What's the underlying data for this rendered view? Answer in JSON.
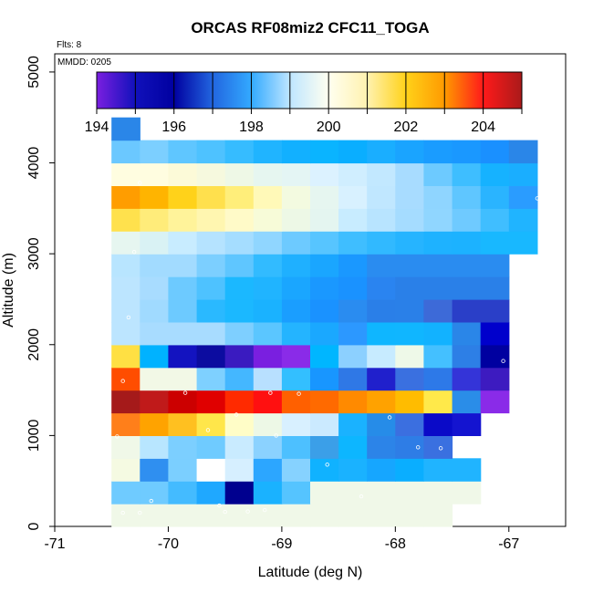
{
  "chart_data": {
    "type": "heatmap",
    "title": "ORCAS RF08miz2 CFC11_TOGA",
    "xlabel": "Latitude (deg N)",
    "ylabel": "Altitude (m)",
    "xlim": [
      -71,
      -66.5
    ],
    "ylim": [
      0,
      5200
    ],
    "x_ticks": [
      -71,
      -70,
      -69,
      -68,
      -67
    ],
    "y_ticks": [
      0,
      1000,
      2000,
      3000,
      4000,
      5000
    ],
    "flights_label": "Flts: 8",
    "date_label": "MMDD: 0205",
    "colorbar": {
      "min": 194,
      "max": 205,
      "tick_values": [
        194,
        196,
        198,
        200,
        202,
        204
      ],
      "colors": [
        "#7a1fe0",
        "#1111bb",
        "#0000a0",
        "#2266e0",
        "#33aaff",
        "#bfe6ff",
        "#fffff0",
        "#fff2b0",
        "#ffd21a",
        "#ff9a00",
        "#ff1a1a",
        "#aa1a1a"
      ]
    },
    "grid": {
      "x_start": -70.5,
      "x_step": 0.25,
      "y_start": 0,
      "y_step": 250,
      "rows": [
        [
          "#f0f8e8",
          "#f0f8e8",
          "#f0f8e8",
          "#f0f8e8",
          "#f0f8e8",
          "#f0f8e8",
          "#f0f8e8",
          "#f0f8e8",
          "#f0f8e8",
          "#f0f8e8",
          "#f0f8e8",
          "#f0f8e8",
          "#f0f8e8",
          "#f0f8e8",
          "#f0f8e8",
          "#f0f8e8"
        ],
        [
          "#6fcbff",
          "#6fcbff",
          "#44bbff",
          "#1fa8ff",
          "#00008f",
          "#1ab2ff",
          "#55c4ff",
          "#f0f8e8",
          "#f0f8e8",
          "#f0f8e8",
          "#f0f8e8",
          "#f0f8e8",
          "#f0f8e8",
          "#f0f8e8",
          "#f0f8e8",
          "#f0f8e8"
        ],
        [
          "#f5fae2",
          "#2f8ff0",
          "#7bcfff",
          "#ffffff",
          "#d6efff",
          "#2ca6ff",
          "#86d2ff",
          "#10b2ff",
          "#1ab2ff",
          "#16a6ff",
          "#0aaeff",
          "#20b4ff",
          "#20b4ff",
          "#0fb6ff",
          "#0fb6ff",
          "#0fb6ff"
        ],
        [
          "#f0f8e8",
          "#b8e6ff",
          "#7ccfff",
          "#6fcbff",
          "#c9ebff",
          "#8bd2ff",
          "#4dc0ff",
          "#3b9fe8",
          "#0db6ff",
          "#2c84e8",
          "#2e7de6",
          "#3a70e0",
          "#1313c8",
          "#1313c8",
          "#1313c8",
          "#1313c8"
        ],
        [
          "#ff7f1a",
          "#ffa300",
          "#ffc020",
          "#ffe64a",
          "#fffdc7",
          "#edf8e6",
          "#d8f0ff",
          "#cbeaff",
          "#1ab2ff",
          "#268ce8",
          "#3b6fe0",
          "#0a0ac8",
          "#1414d0",
          "#1414d0",
          "#1414d0",
          "#1414d0"
        ],
        [
          "#a51a1a",
          "#c01a1a",
          "#cc0000",
          "#e00000",
          "#ff2a00",
          "#ff1010",
          "#ff6000",
          "#ff6a00",
          "#ff8a00",
          "#ffa200",
          "#ffbc00",
          "#ffe94a",
          "#2a8de8",
          "#8a2be8",
          "#8a2be8",
          "#8a2be8"
        ],
        [
          "#ff4d00",
          "#f2f8e6",
          "#f2f8e6",
          "#7ed0ff",
          "#44b7ff",
          "#b8e0ff",
          "#33bfff",
          "#1896ff",
          "#2f78e6",
          "#2020cc",
          "#3a70e0",
          "#2d79e8",
          "#3434d8",
          "#3d1bc0",
          "#3d1bc0",
          "#3d1bc0"
        ],
        [
          "#ffe043",
          "#00b2ff",
          "#1313c0",
          "#0c0ca0",
          "#3a1bc0",
          "#7a1fe0",
          "#8a2be8",
          "#00b6ff",
          "#8cd0ff",
          "#c7ebff",
          "#eef9e8",
          "#44c0ff",
          "#2d7fe6",
          "#0000a0",
          "#0000a0",
          "#0000a0"
        ],
        [
          "#bce5ff",
          "#a8dcff",
          "#a8dcff",
          "#a8dcff",
          "#7ecfff",
          "#5bc6ff",
          "#24b4ff",
          "#1aa8ff",
          "#2c98ff",
          "#0fb6ff",
          "#10b6ff",
          "#12b2ff",
          "#2a86e8",
          "#0000cc",
          "#0000cc",
          "#0000cc"
        ],
        [
          "#bce5ff",
          "#a0daff",
          "#6dcaff",
          "#2ab9ff",
          "#1bb8ff",
          "#1ab2ff",
          "#1a9eff",
          "#1a92ff",
          "#2a8cf0",
          "#2a7fe8",
          "#2a80e8",
          "#3d6ad8",
          "#2a3fc8",
          "#2a3fc8",
          "#2a3fc8",
          "#2a3fc8"
        ],
        [
          "#bce5ff",
          "#a8dcff",
          "#6dcaff",
          "#4ec2ff",
          "#1bb8ff",
          "#20b4ff",
          "#1aa6ff",
          "#1a98ff",
          "#1a92ff",
          "#2a84f0",
          "#2a80e8",
          "#2a80e8",
          "#2a80e8",
          "#2a80e8",
          "#2a80e8",
          "#2a80e8"
        ],
        [
          "#b8e5ff",
          "#a2dbff",
          "#a2dbff",
          "#7ccfff",
          "#5fc6ff",
          "#32bbff",
          "#1fb0ff",
          "#1aa6ff",
          "#1a98ff",
          "#2a8cf0",
          "#2a8cf0",
          "#2a8cf0",
          "#2a8cf0",
          "#2a8cf0",
          "#2a8cf0",
          "#2a8cf0"
        ],
        [
          "#e6f6f0",
          "#d9f2f4",
          "#c8ecff",
          "#b5e3ff",
          "#a5ddff",
          "#90d6ff",
          "#6dcaff",
          "#57c5ff",
          "#3fbeff",
          "#31b9ff",
          "#26b4ff",
          "#1eb2ff",
          "#1cb2ff",
          "#18b8ff",
          "#18b8ff",
          "#18b8ff"
        ],
        [
          "#ffe14d",
          "#ffec7a",
          "#fff39a",
          "#fff6b0",
          "#fffac8",
          "#f7fbd8",
          "#edf8e6",
          "#e4f5f0",
          "#c8ecff",
          "#b8e4ff",
          "#a5dcff",
          "#90d6ff",
          "#6fcaff",
          "#40beff",
          "#20b4ff",
          "#20b4ff"
        ],
        [
          "#ff9d00",
          "#ffb400",
          "#ffd21a",
          "#ffe04d",
          "#ffee7a",
          "#fff9b8",
          "#f3fae0",
          "#e6f6f0",
          "#d8f1ff",
          "#c0e7ff",
          "#a8dcff",
          "#8fd5ff",
          "#5fc6ff",
          "#2ab4ff",
          "#2a9cff",
          "#2a9cff"
        ],
        [
          "#fffde0",
          "#fffde0",
          "#fcfad8",
          "#f6f9de",
          "#eef8e6",
          "#e6f6f0",
          "#e4f5f4",
          "#dcf2ff",
          "#d0eeff",
          "#c2e8ff",
          "#a8dcff",
          "#6dcaff",
          "#3ebeff",
          "#16b2ff",
          "#1aaeff",
          "#1a98ff"
        ],
        [
          "#6bc8ff",
          "#7ccfff",
          "#5fc6ff",
          "#4ec2ff",
          "#36bcff",
          "#20b4ff",
          "#12b0ff",
          "#0ab4ff",
          "#0aaeff",
          "#1aaeff",
          "#1aa4ff",
          "#1a9cff",
          "#1a98ff",
          "#1a90ff",
          "#2a86e8",
          "#2a86e8"
        ],
        [
          "#2a86e8",
          "",
          "",
          "",
          "",
          "",
          "",
          "",
          "",
          "",
          "",
          "",
          "",
          "",
          "",
          ""
        ]
      ],
      "row_extents": [
        [
          0,
          11
        ],
        [
          0,
          12
        ],
        [
          0,
          12
        ],
        [
          0,
          11
        ],
        [
          0,
          12
        ],
        [
          0,
          13
        ],
        [
          0,
          13
        ],
        [
          0,
          13
        ],
        [
          0,
          13
        ],
        [
          0,
          13
        ],
        [
          0,
          13
        ],
        [
          0,
          13
        ],
        [
          0,
          14
        ],
        [
          0,
          14
        ],
        [
          0,
          14
        ],
        [
          0,
          14
        ],
        [
          0,
          14
        ],
        [
          0,
          0
        ]
      ]
    },
    "points": [
      [
        -70.4,
        150
      ],
      [
        -70.25,
        150
      ],
      [
        -70.15,
        280
      ],
      [
        -69.55,
        230
      ],
      [
        -69.5,
        160
      ],
      [
        -69.3,
        165
      ],
      [
        -69.15,
        180
      ],
      [
        -68.3,
        330
      ],
      [
        -68.6,
        680
      ],
      [
        -69.05,
        1000
      ],
      [
        -69.65,
        1060
      ],
      [
        -70.45,
        990
      ],
      [
        -69.4,
        1230
      ],
      [
        -68.05,
        1200
      ],
      [
        -67.8,
        870
      ],
      [
        -67.6,
        860
      ],
      [
        -67.2,
        980
      ],
      [
        -69.85,
        1470
      ],
      [
        -68.85,
        1460
      ],
      [
        -69.1,
        1470
      ],
      [
        -70.4,
        1600
      ],
      [
        -70.35,
        2300
      ],
      [
        -67.05,
        1820
      ],
      [
        -70.3,
        3020
      ],
      [
        -66.95,
        2720
      ],
      [
        -70.25,
        3780
      ],
      [
        -66.75,
        3610
      ]
    ]
  }
}
